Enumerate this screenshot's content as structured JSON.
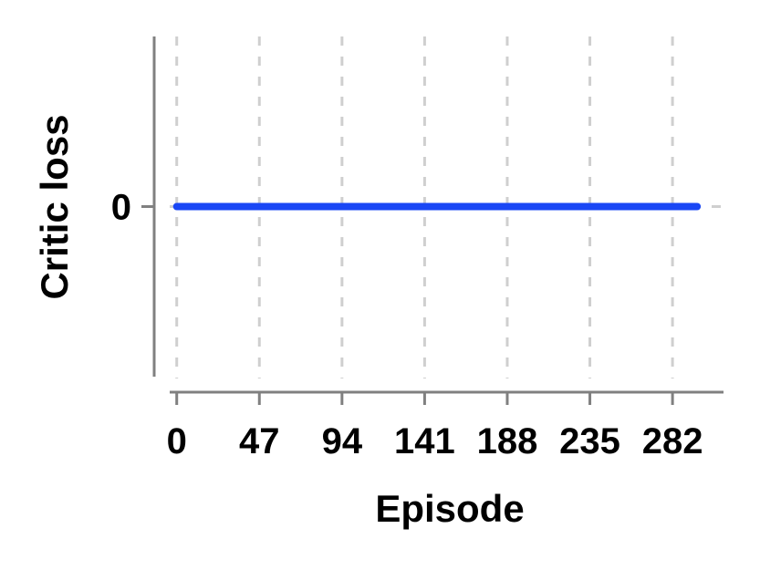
{
  "chart_data": {
    "type": "line",
    "title": "",
    "xlabel": "Episode",
    "ylabel": "Critic loss",
    "x_ticks": [
      0,
      47,
      94,
      141,
      188,
      235,
      282
    ],
    "y_ticks": [
      0
    ],
    "xlim": [
      -4,
      311
    ],
    "ylim": [
      -1,
      1
    ],
    "grid": {
      "x": true,
      "y": true,
      "style": "dashed"
    },
    "legend": "none",
    "series": [
      {
        "color": "#1a47f5",
        "x_start": 0,
        "x_end": 296,
        "constant_value": 0
      }
    ]
  }
}
